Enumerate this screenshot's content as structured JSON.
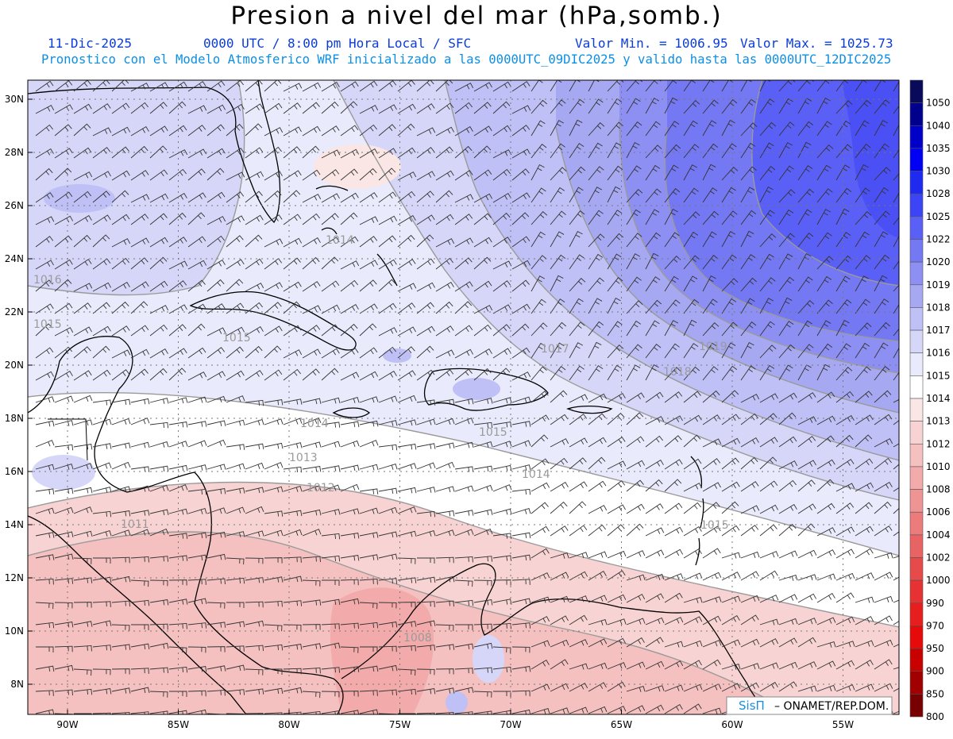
{
  "title": "Presion a nivel del mar (hPa,somb.)",
  "header": {
    "date": "11-Dic-2025",
    "time": "0000 UTC / 8:00 pm Hora Local / SFC",
    "min_label": "Valor Min. = 1006.95",
    "max_label": "Valor Max. = 1025.73",
    "model_line": "Pronostico con el Modelo Atmosferico WRF inicializado a las 0000UTC_09DIC2025 y valido hasta las  0000UTC_12DIC2025"
  },
  "axes": {
    "lat_labels": [
      "30N",
      "28N",
      "26N",
      "24N",
      "22N",
      "20N",
      "18N",
      "16N",
      "14N",
      "12N",
      "10N",
      "8N"
    ],
    "lat_values": [
      30,
      28,
      26,
      24,
      22,
      20,
      18,
      16,
      14,
      12,
      10,
      8
    ],
    "lon_labels": [
      "90W",
      "85W",
      "80W",
      "75W",
      "70W",
      "65W",
      "60W",
      "55W"
    ],
    "lon_values": [
      -90,
      -85,
      -80,
      -75,
      -70,
      -65,
      -60,
      -55
    ]
  },
  "colorbar": {
    "labels": [
      "1050",
      "1040",
      "1035",
      "1030",
      "1028",
      "1025",
      "1022",
      "1020",
      "1019",
      "1018",
      "1017",
      "1016",
      "1015",
      "1014",
      "1013",
      "1012",
      "1010",
      "1008",
      "1006",
      "1004",
      "1002",
      "1000",
      "990",
      "970",
      "950",
      "900",
      "850",
      "800"
    ],
    "colors": [
      "#0a0a5a",
      "#00008c",
      "#0000c8",
      "#0000f5",
      "#1f2af0",
      "#3c44f5",
      "#5a60f5",
      "#7478f2",
      "#8d90f2",
      "#a6a8f2",
      "#bfc0f5",
      "#d6d7f8",
      "#e9eafb",
      "#ffffff",
      "#fbe6e6",
      "#f8d3d3",
      "#f5c0c0",
      "#f2aaaa",
      "#ef9494",
      "#ec7c7c",
      "#e86464",
      "#e64a4a",
      "#e63232",
      "#e61e1e",
      "#e60a0a",
      "#c80000",
      "#a00000",
      "#780000"
    ]
  },
  "contour_labels": [
    {
      "text": "1016"
    },
    {
      "text": "1015"
    },
    {
      "text": "1015"
    },
    {
      "text": "1014"
    },
    {
      "text": "1014"
    },
    {
      "text": "1013"
    },
    {
      "text": "1012"
    },
    {
      "text": "1014"
    },
    {
      "text": "1015"
    },
    {
      "text": "1017"
    },
    {
      "text": "1018"
    },
    {
      "text": "1019"
    },
    {
      "text": "1015"
    },
    {
      "text": "1008"
    },
    {
      "text": "1011"
    }
  ],
  "credit": {
    "logo": "SisΠ",
    "text": "– ONAMET/REP.DOM."
  }
}
